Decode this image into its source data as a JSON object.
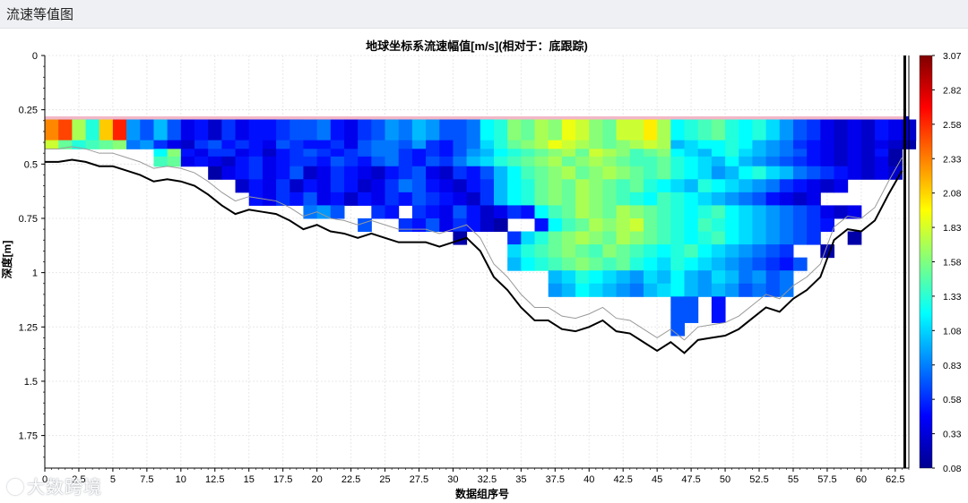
{
  "header": {
    "title": "流速等值图"
  },
  "watermark": {
    "text": "大数跨境"
  },
  "chart_data": {
    "type": "heatmap",
    "title": "地球坐标系流速幅值[m/s](相对于：底跟踪)",
    "xlabel": "数据组序号",
    "ylabel": "深度[m]",
    "xlim": [
      0,
      63.5
    ],
    "ylim": [
      0,
      1.9
    ],
    "y_inverted": true,
    "x_ticks": [
      "0",
      "2.5",
      "5",
      "7.5",
      "10",
      "12.5",
      "15",
      "17.5",
      "20",
      "22.5",
      "25",
      "27.5",
      "30",
      "32.5",
      "35",
      "37.5",
      "40",
      "42.5",
      "45",
      "47.5",
      "50",
      "52.5",
      "55",
      "57.5",
      "60",
      "62.5"
    ],
    "y_ticks": [
      "0",
      "0.25",
      "0.5",
      "0.75",
      "1",
      "1.25",
      "1.5",
      "1.75"
    ],
    "colorbar": {
      "range": [
        0.08,
        3.07
      ],
      "ticks": [
        "0.08",
        "0.33",
        "0.58",
        "0.83",
        "1.08",
        "1.33",
        "1.58",
        "1.83",
        "2.08",
        "2.33",
        "2.58",
        "2.82",
        "3.07"
      ],
      "colormap": "jet"
    },
    "grid": true,
    "colors": {
      "bottom_line": "#000000",
      "offset_line": "#999999",
      "surface_band": "#f2b8c8"
    },
    "cell_layout": {
      "x_start": 0,
      "x_step": 1,
      "y_start": 0.295,
      "rows": 3
    },
    "bottom_track": {
      "x": [
        0,
        1,
        2,
        3,
        4,
        5,
        6,
        7,
        8,
        9,
        10,
        11,
        12,
        13,
        14,
        15,
        16,
        17,
        18,
        19,
        20,
        21,
        22,
        23,
        24,
        25,
        26,
        27,
        28,
        29,
        30,
        31,
        32,
        33,
        34,
        35,
        36,
        37,
        38,
        39,
        40,
        41,
        42,
        43,
        44,
        45,
        46,
        47,
        48,
        49,
        50,
        51,
        52,
        53,
        54,
        55,
        56,
        57,
        58,
        59,
        60,
        61,
        62,
        63
      ],
      "y": [
        0.49,
        0.49,
        0.48,
        0.49,
        0.51,
        0.51,
        0.53,
        0.55,
        0.58,
        0.57,
        0.58,
        0.6,
        0.64,
        0.69,
        0.73,
        0.71,
        0.72,
        0.73,
        0.76,
        0.8,
        0.78,
        0.81,
        0.82,
        0.84,
        0.82,
        0.84,
        0.86,
        0.86,
        0.86,
        0.88,
        0.86,
        0.84,
        0.9,
        1.02,
        1.08,
        1.16,
        1.22,
        1.22,
        1.26,
        1.27,
        1.25,
        1.22,
        1.27,
        1.28,
        1.32,
        1.36,
        1.32,
        1.37,
        1.31,
        1.3,
        1.29,
        1.26,
        1.21,
        1.16,
        1.18,
        1.12,
        1.08,
        1.02,
        0.85,
        0.8,
        0.81,
        0.76,
        0.64,
        0.53
      ]
    },
    "series": [
      {
        "x_start": 0,
        "y_start": 0.295,
        "values": [
          [
            0.1,
            0.2,
            0.3,
            0.8,
            0.9,
            0.7,
            0.8,
            0.9,
            1.1,
            1.3,
            1.4,
            1.5,
            0.3,
            0.4,
            0.5,
            0.6,
            0.5,
            0.4,
            0.7,
            0.6,
            0.7,
            0.6,
            0.5,
            0.8,
            0.7,
            0.6,
            0.9,
            0.9,
            0.8,
            0.8,
            0.4,
            0.3,
            0.7,
            1.3,
            1.5,
            1.6,
            1.7,
            1.8,
            2.0,
            1.8,
            1.9,
            1.7,
            1.6,
            1.7,
            1.9,
            1.6,
            1.8,
            1.4,
            1.3,
            1.2,
            1.5,
            1.4,
            1.2,
            1.1,
            0.9,
            0.8,
            0.7,
            0.6,
            0.5,
            0.4,
            0.3,
            0.4,
            0.2,
            0.2
          ],
          [
            1.6,
            1.2,
            1.4,
            0.9,
            1.7,
            0.6,
            0.8,
            1.0,
            0.9,
            1.2,
            0.5,
            0.4,
            0.6,
            0.7,
            0.5,
            0.6,
            0.4,
            0.8,
            0.5,
            0.7,
            0.6,
            0.7,
            0.6,
            0.5,
            1.1,
            0.8,
            0.6,
            0.9,
            0.7,
            0.6,
            0.5,
            0.9,
            1.1,
            1.4,
            1.6,
            1.6,
            1.9,
            1.7,
            2.0,
            1.9,
            1.8,
            1.6,
            1.7,
            1.9,
            1.8,
            1.7,
            1.3,
            1.5,
            1.2,
            1.4,
            1.5,
            1.3,
            1.2,
            1.0,
            0.9,
            0.8,
            0.6,
            0.5,
            0.4,
            0.3,
            0.4,
            0.3,
            0.6,
            0.2
          ],
          [
            2.3,
            2.5,
            1.7,
            1.3,
            2.1,
            2.6,
            0.9,
            0.7,
            1.0,
            0.7,
            0.4,
            0.5,
            0.3,
            0.6,
            0.4,
            0.5,
            0.5,
            0.6,
            0.7,
            0.7,
            0.8,
            0.5,
            0.4,
            0.6,
            0.7,
            0.9,
            0.8,
            1.0,
            0.9,
            0.7,
            0.7,
            0.8,
            1.2,
            1.3,
            1.6,
            1.5,
            1.7,
            1.6,
            1.9,
            1.8,
            1.6,
            1.5,
            1.8,
            1.8,
            2.0,
            1.7,
            1.2,
            1.3,
            1.4,
            1.5,
            1.3,
            1.2,
            1.3,
            1.1,
            0.9,
            0.7,
            0.6,
            0.4,
            0.3,
            0.4,
            0.3,
            0.5,
            0.4,
            0.3
          ]
        ]
      },
      {
        "x_start": 0,
        "y_start": 0.39,
        "values": [
          [
            1.8,
            1.5,
            1.3,
            1.4,
            1.5,
            1.6,
            0.8,
            0.9,
            0.6,
            0.4,
            0.3,
            0.6,
            0.7,
            0.5,
            0.6,
            0.5,
            0.4,
            0.7,
            0.6,
            0.5,
            0.5,
            0.6,
            0.4,
            0.7,
            0.8,
            0.8,
            0.7,
            0.9,
            0.6,
            0.5,
            0.7,
            0.8,
            1.1,
            1.3,
            1.5,
            1.6,
            1.7,
            1.9,
            1.8,
            1.7,
            1.6,
            1.5,
            1.6,
            1.7,
            1.8,
            1.7,
            1.0,
            1.1,
            1.2,
            1.2,
            1.3,
            1.2,
            1.0,
            0.9,
            0.8,
            0.6,
            0.5,
            0.4,
            0.3,
            0.4,
            0.3,
            0.4,
            0.3,
            0.2
          ]
        ]
      },
      {
        "x_start": 8,
        "y_start": 0.43,
        "values": [
          [
            1.2,
            1.6,
            0.5,
            0.4,
            0.6,
            0.6,
            0.4,
            0.5,
            0.3,
            0.5,
            0.6,
            0.7,
            0.6,
            0.5,
            0.6,
            0.7,
            0.8,
            0.8,
            0.6,
            0.5,
            0.6,
            0.5,
            0.7,
            0.9,
            1.0,
            1.2,
            1.3,
            1.4,
            1.5,
            1.6,
            1.7,
            1.5,
            1.8,
            1.7,
            1.6,
            1.4,
            1.5,
            1.6,
            1.2,
            1.1,
            1.0,
            1.2,
            1.3,
            1.1,
            1.0,
            0.9,
            0.8,
            0.7,
            0.5,
            0.4,
            0.3,
            0.4,
            0.3,
            0.5,
            0.2
          ]
        ]
      },
      {
        "x_start": 8,
        "y_start": 0.465,
        "values": [
          [
            1.4,
            1.5,
            0.4,
            0.5,
            0.4,
            0.3,
            0.5,
            0.6,
            0.4,
            0.5,
            0.6,
            0.6,
            0.5,
            0.7,
            0.6,
            0.5,
            0.7,
            0.8,
            0.6,
            0.5,
            0.7,
            0.6,
            0.8,
            1.0,
            1.1,
            1.3,
            1.4,
            1.5,
            1.6,
            1.7,
            1.5,
            1.6,
            1.7,
            1.6,
            1.5,
            1.4,
            1.4,
            1.5,
            1.3,
            1.2,
            1.1,
            1.0,
            1.2,
            1.0,
            0.9,
            0.8,
            0.7,
            0.6,
            0.5,
            0.4,
            0.3,
            0.4,
            0.3,
            0.4,
            0.2
          ]
        ]
      },
      {
        "x_start": 12,
        "y_start": 0.51,
        "values": [
          [
            0.2,
            0.4,
            0.5,
            0.6,
            0.4,
            0.5,
            0.7,
            0.3,
            0.4,
            0.6,
            0.5,
            0.4,
            0.3,
            0.5,
            0.6,
            0.7,
            0.4,
            0.3,
            0.6,
            0.5,
            0.7,
            1.0,
            1.2,
            1.4,
            1.5,
            1.6,
            1.7,
            1.5,
            1.6,
            1.7,
            1.6,
            1.5,
            1.4,
            1.5,
            1.3,
            1.2,
            1.1,
            0.9,
            1.0,
            1.2,
            1.3,
            1.1,
            1.0,
            0.8,
            0.7,
            0.6,
            0.5,
            0.4,
            0.3,
            0.4,
            0.3
          ]
        ]
      },
      {
        "x_start": 14,
        "y_start": 0.57,
        "values": [
          [
            0.3,
            0.5,
            0.4,
            0.6,
            0.3,
            0.5,
            0.4,
            0.6,
            0.5,
            0.3,
            0.4,
            0.6,
            0.8,
            0.7,
            0.5,
            0.4,
            0.3,
            0.5,
            0.6,
            1.0,
            1.2,
            1.3,
            1.5,
            1.6,
            1.5,
            1.7,
            1.6,
            1.5,
            1.4,
            1.5,
            1.3,
            1.2,
            1.1,
            1.0,
            1.3,
            1.2,
            1.1,
            1.0,
            0.9,
            0.8,
            0.6,
            0.5,
            0.4,
            0.3,
            0.4
          ]
        ]
      },
      {
        "x_start": 15,
        "y_start": 0.63,
        "values": [
          [
            0.5,
            0.4,
            0.6,
            0.5,
            0.7,
            0.4,
            0.5,
            0.3,
            0.5,
            0.4,
            0.6,
            0.5,
            0.7,
            0.6,
            0.5,
            0.4,
            0.3,
            0.6,
            1.0,
            1.2,
            1.3,
            1.5,
            1.6,
            1.5,
            1.7,
            1.6,
            1.5,
            1.4,
            1.3,
            1.2,
            1.4,
            1.3,
            1.2,
            1.1,
            1.0,
            0.9,
            0.8,
            0.7,
            0.5,
            0.4,
            0.3,
            0.4
          ]
        ]
      },
      {
        "x_start": 19,
        "y_start": 0.69,
        "values": [
          [
            0.8,
            0.9,
            0.7,
            null,
            null,
            0.6,
            0.5,
            null,
            0.6,
            0.5,
            0.4,
            0.7,
            0.5,
            0.3,
            0.4,
            0.6,
            0.5,
            1.2,
            1.4,
            1.5,
            1.7,
            1.6,
            1.5,
            1.7,
            1.6,
            1.5,
            1.4,
            1.3,
            1.2,
            1.3,
            1.4,
            1.2,
            1.1,
            1.0,
            0.9,
            0.8,
            0.7,
            0.6,
            0.4,
            0.3,
            0.4
          ]
        ]
      },
      {
        "x_start": 23,
        "y_start": 0.75,
        "values": [
          [
            0.7,
            null,
            null,
            0.6,
            0.5,
            0.7,
            0.4,
            0.6,
            0.5,
            0.3,
            0.2,
            null,
            null,
            0.5,
            1.2,
            1.4,
            1.5,
            1.7,
            1.6,
            1.7,
            1.8,
            1.5,
            1.4,
            1.3,
            1.2,
            1.4,
            1.3,
            1.2,
            1.1,
            1.0,
            0.9,
            0.8,
            0.7,
            0.6,
            0.5
          ]
        ]
      },
      {
        "x_start": 30,
        "y_start": 0.81,
        "values": [
          [
            0.2,
            null,
            null,
            null,
            0.6,
            1.1,
            1.3,
            1.5,
            1.6,
            1.7,
            1.6,
            1.5,
            1.7,
            1.6,
            1.5,
            1.4,
            1.3,
            1.2,
            1.3,
            1.4,
            1.2,
            1.1,
            1.0,
            0.9,
            0.8,
            0.7,
            0.6,
            null,
            null,
            0.2
          ]
        ]
      },
      {
        "x_start": 34,
        "y_start": 0.87,
        "values": [
          [
            1.1,
            1.3,
            1.4,
            1.5,
            1.6,
            1.5,
            1.4,
            1.6,
            1.5,
            1.4,
            1.3,
            1.2,
            1.3,
            1.4,
            1.2,
            1.1,
            1.0,
            0.9,
            0.8,
            0.7,
            0.6,
            null,
            null,
            0.2
          ]
        ]
      },
      {
        "x_start": 34,
        "y_start": 0.93,
        "values": [
          [
            1.0,
            1.2,
            1.3,
            1.4,
            1.5,
            1.6,
            1.5,
            1.4,
            1.5,
            1.3,
            1.2,
            1.1,
            1.3,
            1.2,
            1.1,
            1.0,
            0.9,
            0.8,
            0.7,
            0.6,
            0.5,
            0.7
          ]
        ]
      },
      {
        "x_start": 37,
        "y_start": 0.99,
        "values": [
          [
            1.0,
            1.1,
            1.3,
            1.2,
            1.1,
            1.0,
            0.9,
            1.1,
            1.0,
            1.2,
            1.0,
            0.9,
            1.1,
            1.0,
            0.8,
            0.9,
            0.7,
            0.8
          ]
        ]
      },
      {
        "x_start": 37,
        "y_start": 1.05,
        "values": [
          [
            0.9,
            1.0,
            1.2,
            1.1,
            1.0,
            0.9,
            0.8,
            1.0,
            1.1,
            1.2,
            1.0,
            0.9,
            1.0,
            0.9,
            0.7,
            0.8,
            0.7,
            0.8
          ]
        ]
      },
      {
        "x_start": 46,
        "y_start": 1.11,
        "values": [
          [
            0.7,
            0.7,
            null,
            0.5
          ]
        ]
      },
      {
        "x_start": 46,
        "y_start": 1.17,
        "values": [
          [
            0.7,
            0.7,
            null,
            0.5
          ]
        ]
      },
      {
        "x_start": 46,
        "y_start": 1.23,
        "values": [
          [
            0.7,
            null,
            null,
            null
          ]
        ]
      }
    ]
  }
}
